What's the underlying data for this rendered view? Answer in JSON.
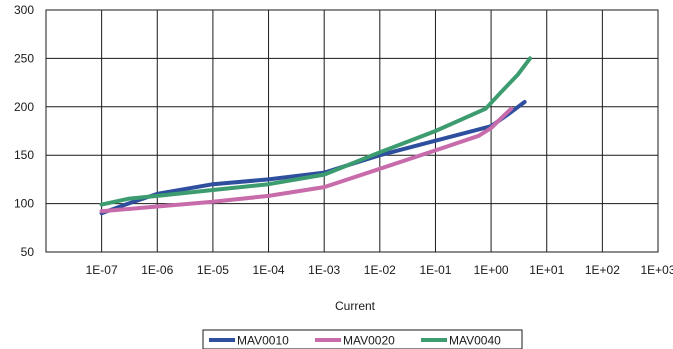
{
  "chart_data": {
    "type": "line",
    "title": "",
    "xlabel": "Current",
    "ylabel": "",
    "x_scale": "log",
    "xlim": [
      1e-08,
      1000
    ],
    "ylim": [
      50,
      300
    ],
    "grid": true,
    "legend_position": "bottom",
    "x_tick_labels": [
      "1E-07",
      "1E-06",
      "1E-05",
      "1E-04",
      "1E-03",
      "1E-02",
      "1E-01",
      "1E+00",
      "1E+01",
      "1E+02",
      "1E+03"
    ],
    "y_tick_labels": [
      "50",
      "100",
      "150",
      "200",
      "250",
      "300"
    ],
    "series": [
      {
        "name": "MAV0010",
        "color": "#2e4f9e",
        "x": [
          1e-07,
          3e-07,
          1e-06,
          1e-05,
          0.0001,
          0.001,
          0.01,
          0.1,
          1,
          2,
          4
        ],
        "y": [
          90,
          100,
          110,
          120,
          125,
          132,
          150,
          165,
          180,
          192,
          205
        ]
      },
      {
        "name": "MAV0020",
        "color": "#c86bab",
        "x": [
          1e-07,
          1e-06,
          1e-05,
          0.0001,
          0.001,
          0.01,
          0.1,
          0.6,
          1,
          1.5,
          2.3
        ],
        "y": [
          92,
          97,
          102,
          108,
          117,
          136,
          155,
          170,
          178,
          188,
          198
        ]
      },
      {
        "name": "MAV0040",
        "color": "#3c9c70",
        "x": [
          1e-07,
          3e-07,
          1e-06,
          1e-05,
          0.0001,
          0.001,
          0.01,
          0.1,
          0.8,
          1.5,
          3,
          5
        ],
        "y": [
          99,
          105,
          108,
          114,
          120,
          130,
          153,
          175,
          198,
          215,
          233,
          250
        ]
      }
    ]
  }
}
